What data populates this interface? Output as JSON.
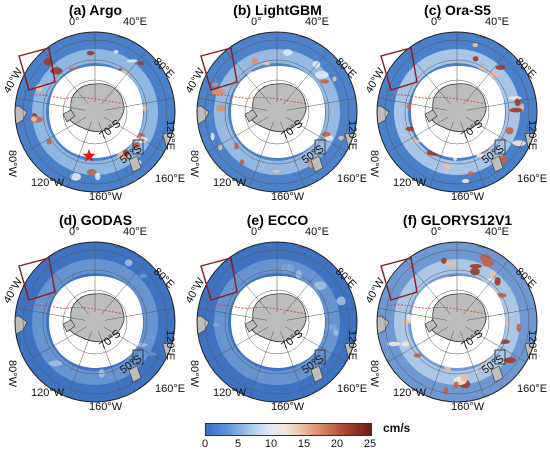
{
  "panels": [
    {
      "title": "(a) Argo",
      "style": "argo",
      "star": true
    },
    {
      "title": "(b) LightGBM",
      "style": "lightgbm",
      "star": false
    },
    {
      "title": "(c) Ora-S5",
      "style": "oras5",
      "star": false
    },
    {
      "title": "(d) GODAS",
      "style": "godas",
      "star": false
    },
    {
      "title": "(e) ECCO",
      "style": "ecco",
      "star": false
    },
    {
      "title": "(f) GLORYS12V1",
      "style": "glorys",
      "star": false
    }
  ],
  "map_labels": {
    "lon_0": "0°",
    "lon_40E": "40°E",
    "lon_80E": "80°E",
    "lon_120E": "120°E",
    "lon_160E": "160°E",
    "lon_160W": "160°W",
    "lon_120W": "120°W",
    "lon_80W": "80°W",
    "lon_40W": "40°W",
    "lat_70S": "70°S",
    "lat_50S": "50°S"
  },
  "colorbar": {
    "ticks": [
      "0",
      "5",
      "10",
      "15",
      "20",
      "25"
    ],
    "unit": "cm/s",
    "range": [
      0,
      25
    ],
    "colors": [
      "#3b6fc8",
      "#9fc0e6",
      "#dfe9f3",
      "#e9bfa6",
      "#c06347",
      "#6b1d1b"
    ]
  },
  "colors": {
    "land": "#bdbdbd",
    "ocean_base": "#4a78c4",
    "ocean_light": "#8fb4e0",
    "ice_white": "#ffffff",
    "box_outline": "#8b1a1a",
    "star": "#e31a1c"
  }
}
